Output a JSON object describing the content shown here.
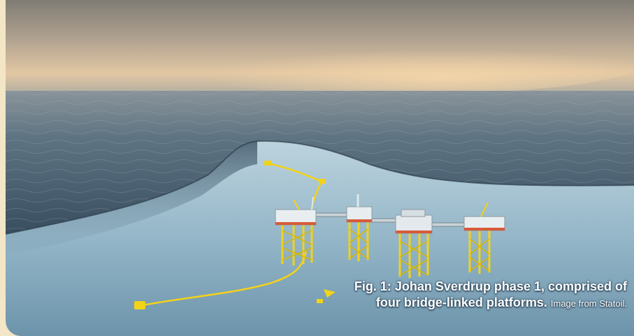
{
  "photo": {
    "subject": "offshore-platform-complex-render",
    "colors": {
      "sky_top": "#8f8c84",
      "sky_glow": "#e6c9a3",
      "sea_far": "#6e8190",
      "sea_near": "#3d5568",
      "seabed": "#8fb4c8",
      "structure": "#f3d21a",
      "page_background": "#f3e6c6"
    },
    "icon_names": [
      "platform",
      "bridge",
      "pipeline",
      "subsea-template",
      "buoy"
    ]
  },
  "caption": {
    "bold_text": "Fig. 1: Johan Sverdrup phase 1, comprised of four bridge-linked platforms.",
    "credit_text": "Image from Statoil."
  }
}
